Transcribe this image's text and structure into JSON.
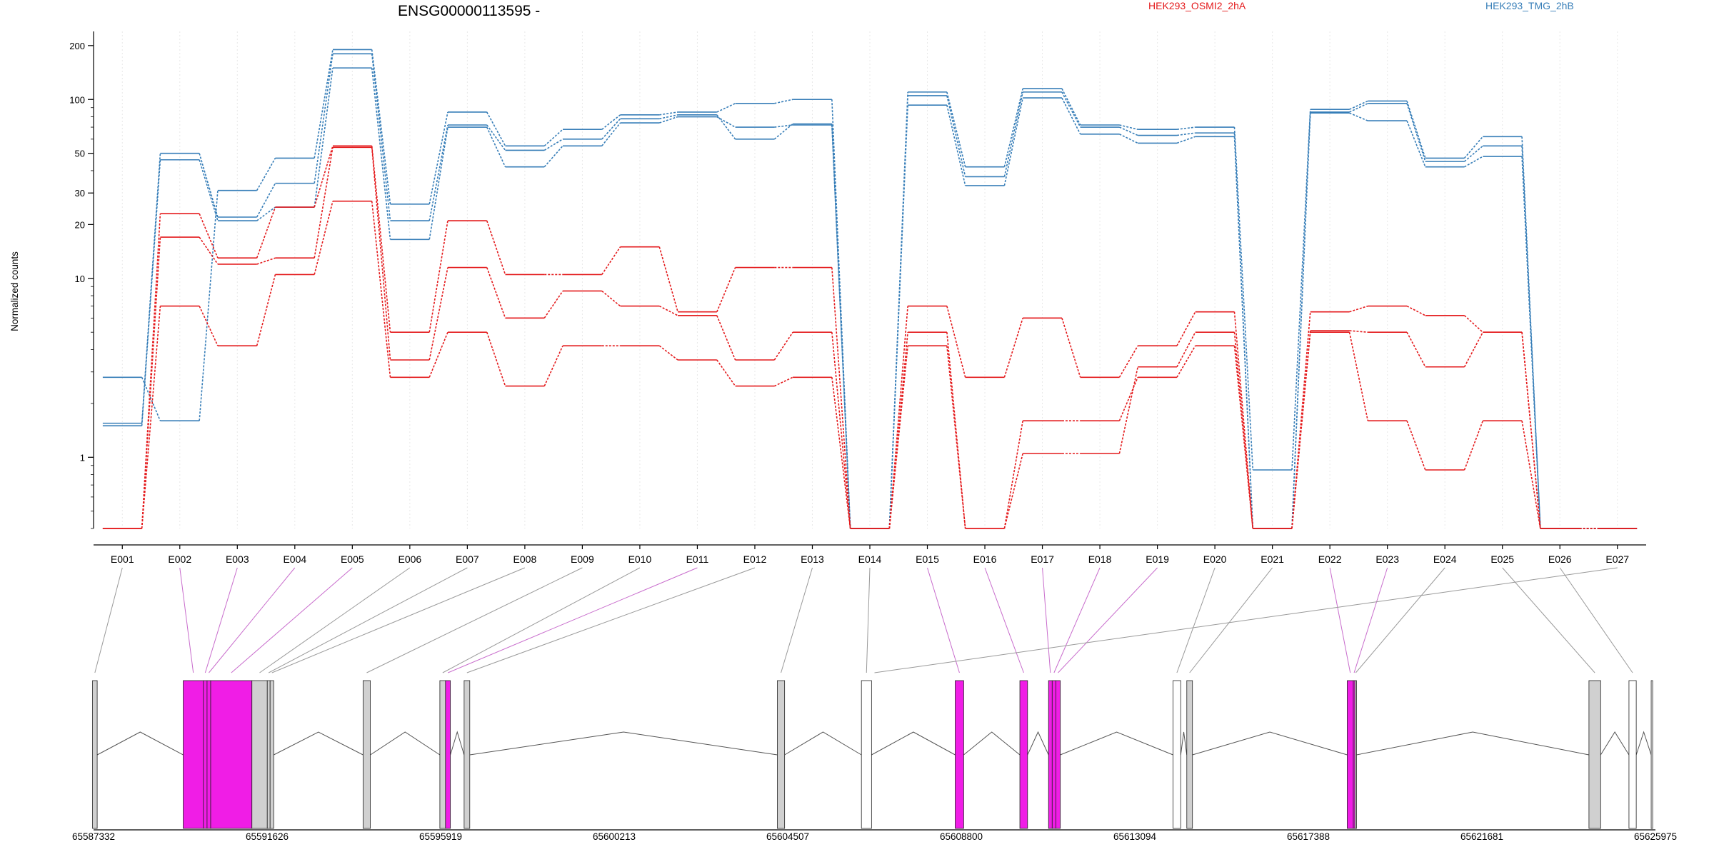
{
  "chart_data": {
    "type": "line",
    "title": "ENSG00000113595 -",
    "ylabel": "Normalized counts",
    "y_scale": "log",
    "ylim": [
      0.4,
      240
    ],
    "y_ticks": [
      1,
      10,
      20,
      30,
      50,
      100,
      200
    ],
    "categories": [
      "E001",
      "E002",
      "E003",
      "E004",
      "E005",
      "E006",
      "E007",
      "E008",
      "E009",
      "E010",
      "E011",
      "E012",
      "E013",
      "E014",
      "E015",
      "E016",
      "E017",
      "E018",
      "E019",
      "E020",
      "E021",
      "E022",
      "E023",
      "E024",
      "E025",
      "E026",
      "E027"
    ],
    "legend": [
      {
        "name": "HEK293_OSMI2_2hA",
        "color": "#e41a1c"
      },
      {
        "name": "HEK293_TMG_2hB",
        "color": "#377eb8"
      }
    ],
    "series": [
      {
        "group": "HEK293_TMG_2hB",
        "color": "#377eb8",
        "values": [
          2.8,
          1.6,
          31,
          47,
          190,
          26,
          85,
          55,
          68,
          82,
          85,
          95,
          100,
          0.4,
          110,
          42,
          115,
          72,
          68,
          70,
          0.85,
          88,
          98,
          47,
          62,
          0.4,
          0.4
        ]
      },
      {
        "group": "HEK293_TMG_2hB",
        "color": "#377eb8",
        "values": [
          1.55,
          50,
          22,
          34,
          180,
          21,
          72,
          52,
          60,
          78,
          82,
          60,
          73,
          0.4,
          105,
          37,
          110,
          70,
          63,
          65,
          0.4,
          85,
          95,
          45,
          55,
          0.4,
          0.4
        ]
      },
      {
        "group": "HEK293_TMG_2hB",
        "color": "#377eb8",
        "values": [
          1.5,
          46,
          21,
          25,
          150,
          16.5,
          70,
          42,
          55,
          74,
          80,
          70,
          72,
          0.4,
          93,
          33,
          102,
          64,
          57,
          62,
          0.4,
          84,
          76,
          42,
          48,
          0.4,
          0.4
        ]
      },
      {
        "group": "HEK293_OSMI2_2hA",
        "color": "#e41a1c",
        "values": [
          0.4,
          23,
          13,
          25,
          55,
          5,
          21,
          10.5,
          10.5,
          15,
          6.5,
          11.5,
          11.5,
          0.4,
          7,
          2.8,
          6,
          2.8,
          4.2,
          6.5,
          0.4,
          6.5,
          7,
          6.2,
          5,
          0.4,
          0.4
        ]
      },
      {
        "group": "HEK293_OSMI2_2hA",
        "color": "#e41a1c",
        "values": [
          0.4,
          17,
          12,
          13,
          54,
          3.5,
          11.5,
          6,
          8.5,
          7,
          6.2,
          3.5,
          5,
          0.4,
          5,
          0.4,
          1.05,
          1.05,
          3.2,
          5,
          0.4,
          5.1,
          5,
          3.2,
          5,
          0.4,
          0.4
        ]
      },
      {
        "group": "HEK293_OSMI2_2hA",
        "color": "#e41a1c",
        "values": [
          0.4,
          7,
          4.2,
          10.5,
          27,
          2.8,
          5,
          2.5,
          4.2,
          4.2,
          3.5,
          2.5,
          2.8,
          0.4,
          4.2,
          0.4,
          1.6,
          1.6,
          2.8,
          4.2,
          0.4,
          5,
          1.6,
          0.85,
          1.6,
          0.4,
          0.4
        ]
      }
    ],
    "genomic_axis": {
      "tick_labels": [
        "65587332",
        "65591626",
        "65595919",
        "65600213",
        "65604507",
        "65608800",
        "65613094",
        "65617388",
        "65621681",
        "65625975"
      ]
    },
    "exon_highlight": [
      "E002",
      "E003",
      "E004",
      "E005",
      "E011",
      "E015",
      "E016",
      "E017",
      "E018",
      "E019",
      "E022",
      "E023"
    ],
    "colors": {
      "red": "#e41a1c",
      "blue": "#377eb8",
      "highlight": "#f01de6",
      "plain_exon": "#d0d0d0",
      "connector_plain": "#999999",
      "connector_highlight": "#c86ccc"
    }
  }
}
